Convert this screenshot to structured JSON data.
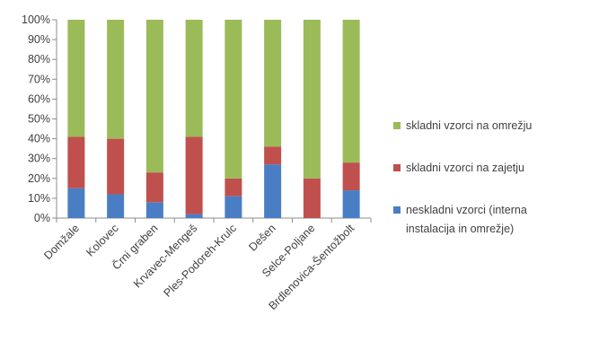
{
  "chart_data": {
    "type": "bar",
    "stacked": "percent",
    "categories": [
      "Domžale",
      "Kolovec",
      "Črni graben",
      "Krvavec-Mengeš",
      "Ples-Podoreh-Krulc",
      "Dešen",
      "Selce-Poljane",
      "Brdlenovica-Šentožbolt"
    ],
    "series": [
      {
        "name": "neskladni vzorci (interna instalacija in omrežje)",
        "color": "#4a7ec4",
        "values": [
          15,
          12,
          8,
          2,
          11,
          27,
          0,
          14
        ]
      },
      {
        "name": "skladni vzorci na zajetju",
        "color": "#c0504d",
        "values": [
          26,
          28,
          15,
          39,
          9,
          9,
          20,
          14
        ]
      },
      {
        "name": "skladni vzorci na omrežju",
        "color": "#9bbb59",
        "values": [
          59,
          60,
          77,
          59,
          80,
          64,
          80,
          72
        ]
      }
    ],
    "ylim": [
      0,
      100
    ],
    "yticks": [
      "0%",
      "10%",
      "20%",
      "30%",
      "40%",
      "50%",
      "60%",
      "70%",
      "80%",
      "90%",
      "100%"
    ],
    "legend_position": "right",
    "legend_order": [
      2,
      1,
      0
    ],
    "legend_lines": [
      [
        "skladni vzorci na omrežju"
      ],
      [
        "skladni vzorci na zajetju"
      ],
      [
        "neskladni vzorci (interna",
        "instalacija in omrežje)"
      ]
    ],
    "grid": false,
    "title": "",
    "xlabel": "",
    "ylabel": ""
  }
}
